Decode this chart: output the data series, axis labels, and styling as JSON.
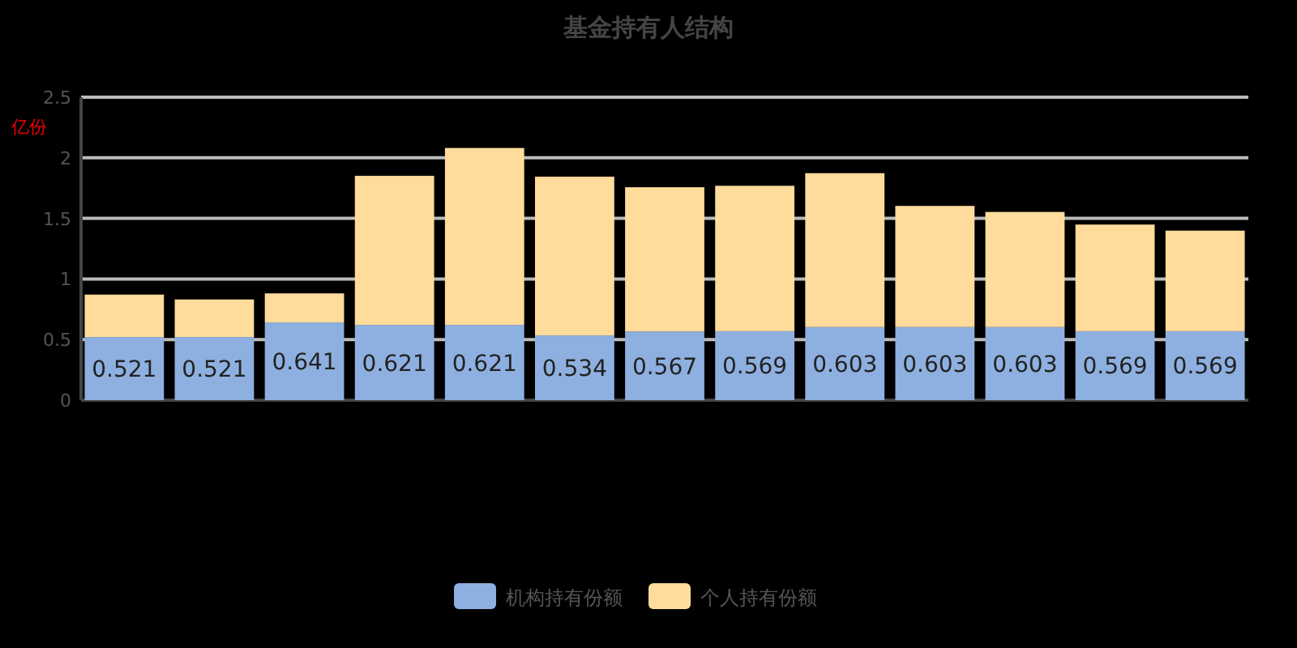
{
  "chart_data": {
    "type": "bar",
    "title": "基金持有人结构",
    "ylabel": "亿份",
    "stacked": true,
    "categories": [
      null,
      null,
      null,
      null,
      null,
      null,
      null,
      null,
      null,
      null,
      null,
      null,
      null
    ],
    "series": [
      {
        "name": "机构持有份额",
        "color": "#8eb0e0",
        "values": [
          0.521,
          0.521,
          0.641,
          0.621,
          0.621,
          0.534,
          0.567,
          0.569,
          0.603,
          0.603,
          0.603,
          0.569,
          0.569
        ],
        "value_labels": [
          "0.521",
          "0.521",
          "0.641",
          "0.621",
          "0.621",
          "0.534",
          "0.567",
          "0.569",
          "0.603",
          "0.603",
          "0.603",
          "0.569",
          "0.569"
        ]
      },
      {
        "name": "个人持有份额",
        "color": "#ffdb9c",
        "values": [
          0.35,
          0.31,
          0.24,
          1.23,
          1.46,
          1.31,
          1.19,
          1.2,
          1.27,
          1.0,
          0.95,
          0.88,
          0.83
        ]
      }
    ],
    "ylim": [
      0,
      2.5
    ],
    "yticks": [
      0,
      0.5,
      1,
      1.5,
      2,
      2.5
    ],
    "grid": "y",
    "legend": "bottom"
  }
}
